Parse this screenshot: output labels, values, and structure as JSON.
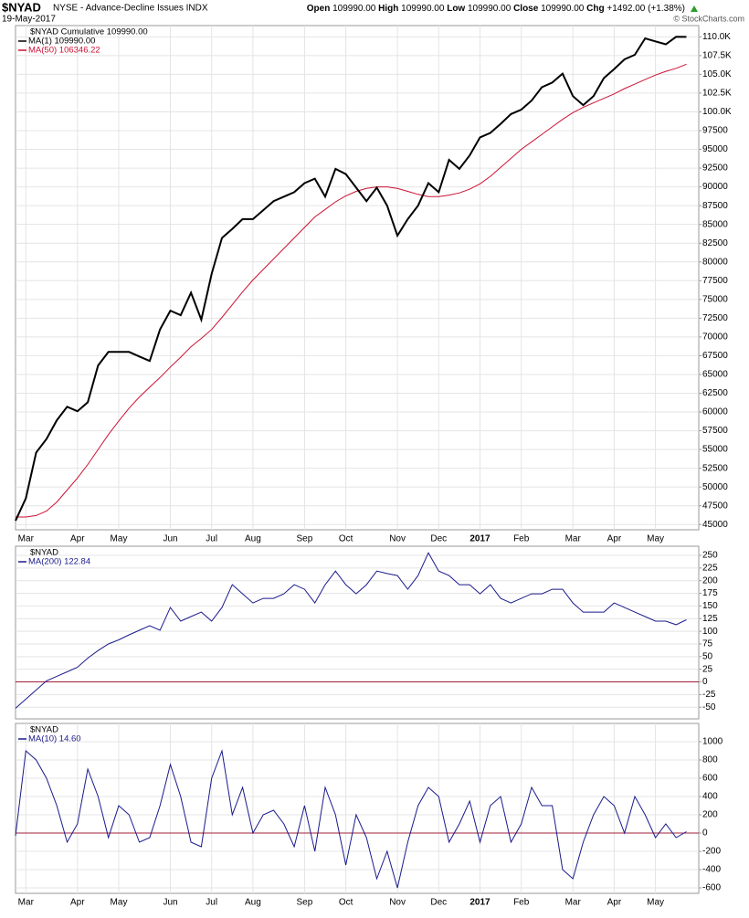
{
  "header": {
    "symbol": "$NYAD",
    "description": "NYSE - Advance-Decline Issues INDX",
    "date": "19-May-2017",
    "stats": [
      {
        "label": "Open",
        "value": "109990.00"
      },
      {
        "label": "High",
        "value": "109990.00"
      },
      {
        "label": "Low",
        "value": "109990.00"
      },
      {
        "label": "Close",
        "value": "109990.00"
      },
      {
        "label": "Chg",
        "value": "+1492.00 (+1.38%)"
      }
    ],
    "source": "© StockCharts.com"
  },
  "chart_data": [
    {
      "type": "line",
      "legend_title": "$NYAD Cumulative 109990.00",
      "categories": [
        null,
        "Mar",
        null,
        null,
        null,
        null,
        "Apr",
        null,
        null,
        null,
        "May",
        null,
        null,
        null,
        null,
        "Jun",
        null,
        null,
        null,
        "Jul",
        null,
        null,
        null,
        "Aug",
        null,
        null,
        null,
        null,
        "Sep",
        null,
        null,
        null,
        "Oct",
        null,
        null,
        null,
        null,
        "Nov",
        null,
        null,
        null,
        "Dec",
        null,
        null,
        null,
        "2017",
        null,
        null,
        null,
        "Feb",
        null,
        null,
        null,
        null,
        "Mar",
        null,
        null,
        null,
        "Apr",
        null,
        null,
        null,
        "May",
        null,
        null,
        null
      ],
      "series": [
        {
          "name": "MA(1) 109990.00",
          "color": "#000000",
          "values": [
            45500,
            48500,
            54600,
            56400,
            58900,
            60700,
            60100,
            61300,
            66200,
            68000,
            68000,
            68000,
            67400,
            66800,
            71000,
            73500,
            72900,
            75900,
            72300,
            78400,
            83200,
            84400,
            85700,
            85700,
            86900,
            88100,
            88700,
            89300,
            90500,
            91100,
            88700,
            92400,
            91700,
            89900,
            88100,
            89900,
            87500,
            83500,
            85700,
            87500,
            90500,
            89300,
            93600,
            92400,
            94200,
            96600,
            97200,
            98400,
            99700,
            100300,
            101500,
            103300,
            103900,
            105100,
            102100,
            100900,
            102100,
            104500,
            105700,
            107000,
            107600,
            109800,
            109400,
            109000,
            110000,
            109990
          ]
        },
        {
          "name": "MA(50) 106346.22",
          "color": "#cc1133",
          "values": [
            46000,
            46000,
            46200,
            46800,
            48000,
            49600,
            51200,
            53000,
            55000,
            57000,
            58800,
            60500,
            62000,
            63300,
            64600,
            66000,
            67300,
            68700,
            69800,
            71000,
            72600,
            74300,
            76000,
            77600,
            79000,
            80400,
            81800,
            83200,
            84600,
            86000,
            87000,
            88000,
            88800,
            89400,
            89800,
            90000,
            90000,
            89800,
            89400,
            89000,
            88700,
            88700,
            88900,
            89200,
            89700,
            90400,
            91400,
            92600,
            93800,
            95000,
            96000,
            97000,
            98000,
            99000,
            99900,
            100600,
            101200,
            101800,
            102400,
            103100,
            103700,
            104300,
            104900,
            105400,
            105800,
            106346.22
          ]
        }
      ],
      "ylim": [
        44300,
        111500
      ],
      "yticks": [
        {
          "value": 110000,
          "label": "110.0K"
        },
        {
          "value": 107500,
          "label": "107.5K"
        },
        {
          "value": 105000,
          "label": "105.0K"
        },
        {
          "value": 102500,
          "label": "102.5K"
        },
        {
          "value": 100000,
          "label": "100.0K"
        },
        97500,
        95000,
        92500,
        90000,
        87500,
        85000,
        82500,
        80000,
        77500,
        75000,
        72500,
        70000,
        67500,
        65000,
        62500,
        60000,
        57500,
        55000,
        52500,
        50000,
        47500,
        45000
      ],
      "grid": true
    },
    {
      "type": "line",
      "legend_title": "$NYAD",
      "series": [
        {
          "name": "MA(200) 122.84",
          "color": "#1a1a8c",
          "values": [
            -52,
            -34,
            -16,
            2,
            11,
            20,
            29,
            47,
            62,
            75,
            83,
            93,
            102,
            111,
            102,
            147,
            120,
            129,
            138,
            120,
            147,
            192,
            174,
            156,
            165,
            165,
            174,
            192,
            183,
            156,
            192,
            219,
            192,
            174,
            192,
            219,
            214,
            210,
            183,
            210,
            255,
            219,
            210,
            192,
            192,
            174,
            192,
            165,
            156,
            165,
            174,
            174,
            183,
            183,
            156,
            138,
            138,
            138,
            156,
            147,
            138,
            129,
            120,
            120,
            113,
            122.84
          ]
        }
      ],
      "ylim": [
        -73,
        268
      ],
      "yticks": [
        250,
        225,
        200,
        175,
        150,
        125,
        100,
        75,
        50,
        25,
        0,
        -25,
        -50
      ],
      "reference_line": 0,
      "reference_color": "#a0203a",
      "grid": true
    },
    {
      "type": "line",
      "legend_title": "$NYAD",
      "categories": [
        null,
        "Mar",
        null,
        null,
        null,
        null,
        "Apr",
        null,
        null,
        null,
        "May",
        null,
        null,
        null,
        null,
        "Jun",
        null,
        null,
        null,
        "Jul",
        null,
        null,
        null,
        "Aug",
        null,
        null,
        null,
        null,
        "Sep",
        null,
        null,
        null,
        "Oct",
        null,
        null,
        null,
        null,
        "Nov",
        null,
        null,
        null,
        "Dec",
        null,
        null,
        null,
        "2017",
        null,
        null,
        null,
        "Feb",
        null,
        null,
        null,
        null,
        "Mar",
        null,
        null,
        null,
        "Apr",
        null,
        null,
        null,
        "May",
        null,
        null,
        null
      ],
      "series": [
        {
          "name": "MA(10) 14.60",
          "color": "#1a1a8c",
          "values": [
            -30,
            900,
            800,
            600,
            300,
            -100,
            100,
            700,
            400,
            -50,
            300,
            200,
            -100,
            -50,
            300,
            750,
            400,
            -100,
            -150,
            600,
            900,
            200,
            500,
            0,
            200,
            250,
            100,
            -150,
            300,
            -200,
            500,
            200,
            -350,
            200,
            -50,
            -500,
            -200,
            -600,
            -100,
            300,
            500,
            400,
            -100,
            100,
            350,
            -100,
            300,
            400,
            -100,
            100,
            500,
            300,
            300,
            -400,
            -500,
            -100,
            200,
            400,
            300,
            0,
            400,
            200,
            -50,
            100,
            -50,
            14.6
          ]
        }
      ],
      "ylim": [
        -660,
        1200
      ],
      "yticks": [
        1000,
        800,
        600,
        400,
        200,
        0,
        -200,
        -400,
        -600
      ],
      "reference_line": 0,
      "reference_color": "#a0203a",
      "grid": true
    }
  ]
}
